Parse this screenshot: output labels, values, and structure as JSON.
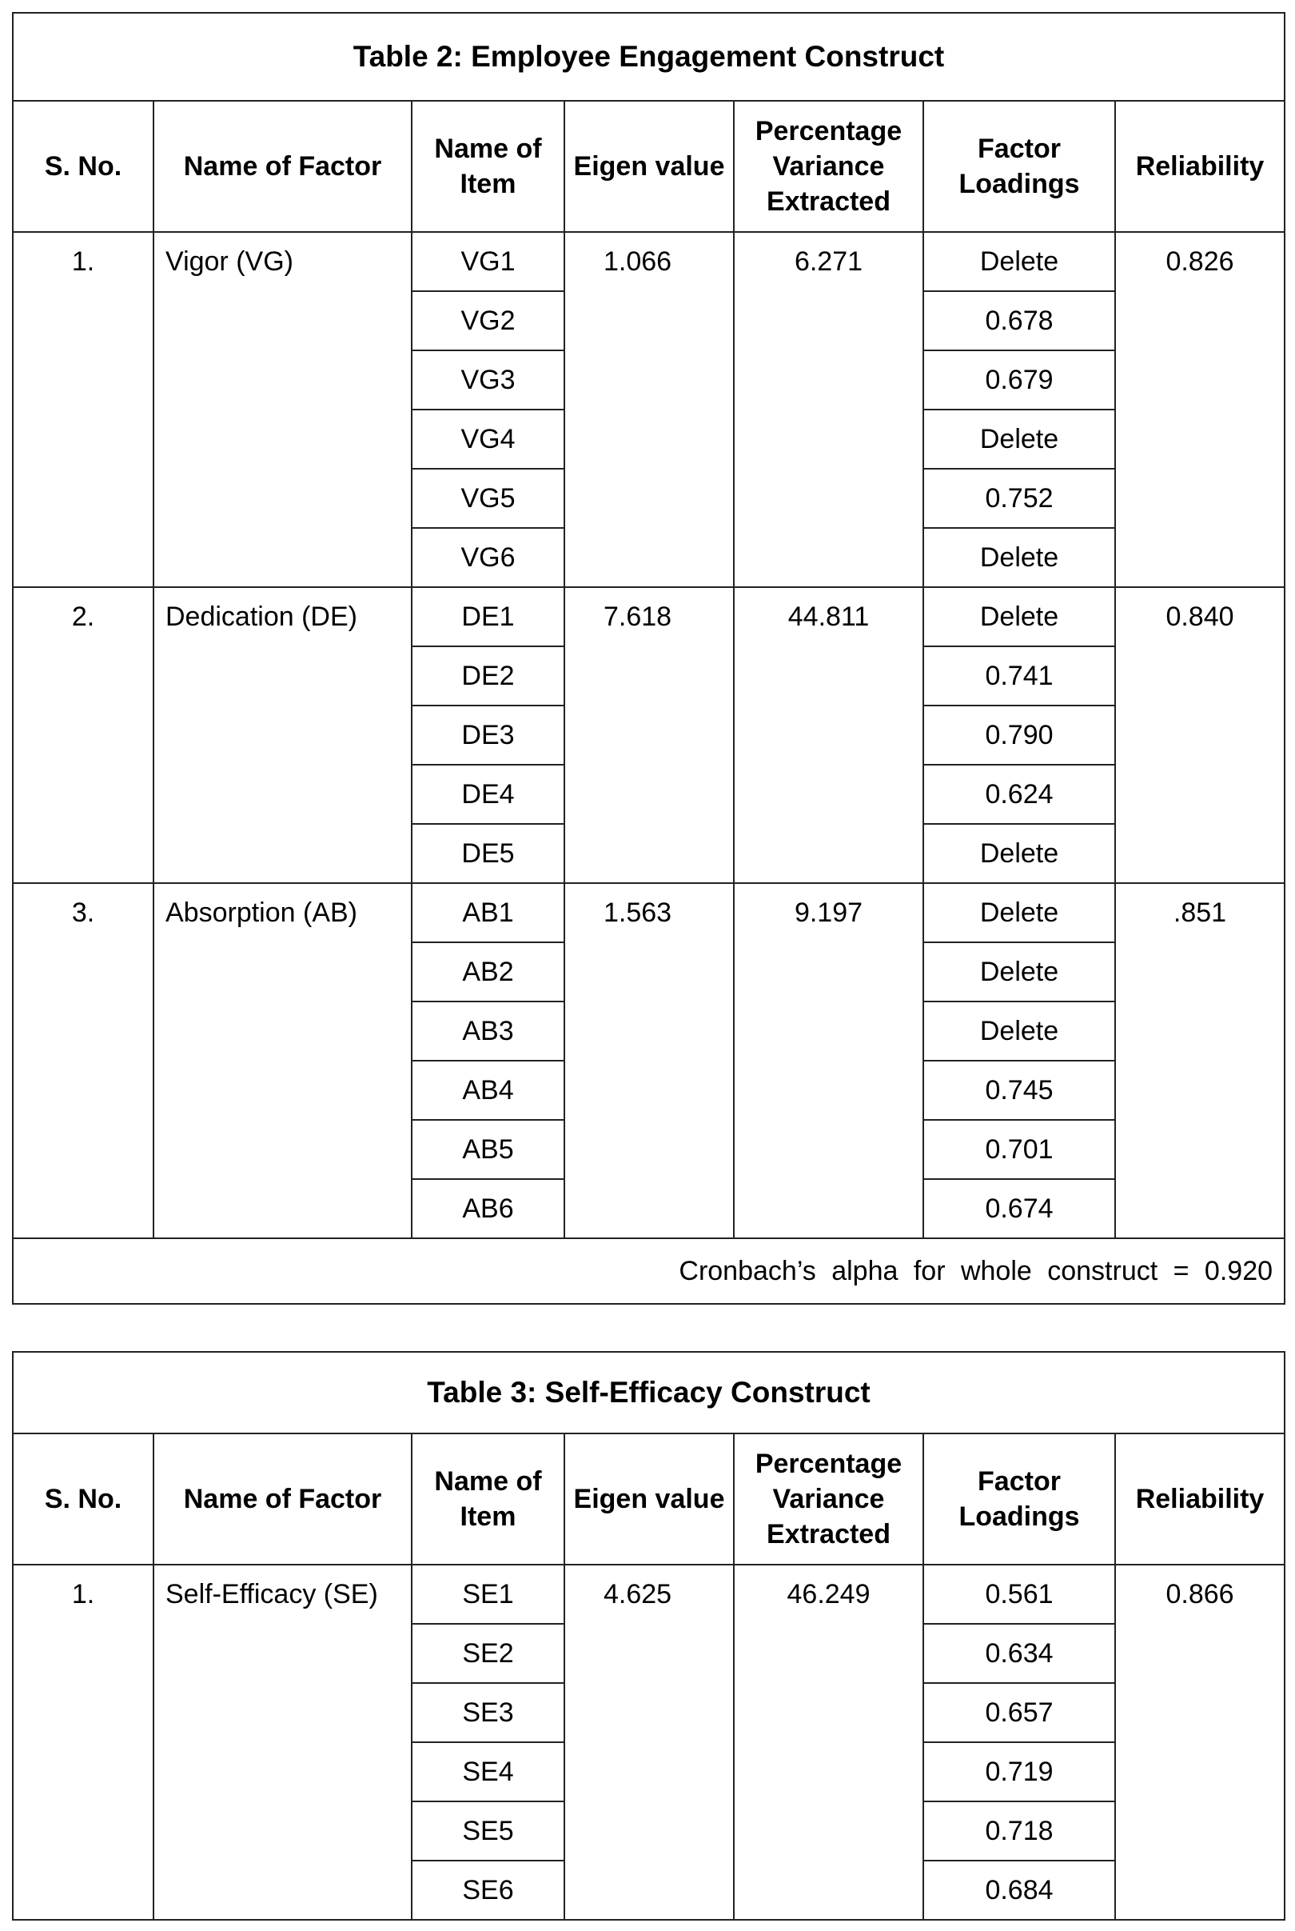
{
  "table2": {
    "title": "Table 2: Employee Engagement Construct",
    "headers": [
      "S. No.",
      "Name of Factor",
      "Name of Item",
      "Eigen value",
      "Percentage Variance Extracted",
      "Factor Loadings",
      "Reliability"
    ],
    "groups": [
      {
        "sno": "1.",
        "factor": "Vigor (VG)",
        "eigen": "1.066",
        "variance": "6.271",
        "reliability": "0.826",
        "items": [
          [
            "VG1",
            "Delete"
          ],
          [
            "VG2",
            "0.678"
          ],
          [
            "VG3",
            "0.679"
          ],
          [
            "VG4",
            "Delete"
          ],
          [
            "VG5",
            "0.752"
          ],
          [
            "VG6",
            "Delete"
          ]
        ]
      },
      {
        "sno": "2.",
        "factor": "Dedication  (DE)",
        "eigen": "7.618",
        "variance": "44.811",
        "reliability": "0.840",
        "items": [
          [
            "DE1",
            "Delete"
          ],
          [
            "DE2",
            "0.741"
          ],
          [
            "DE3",
            "0.790"
          ],
          [
            "DE4",
            "0.624"
          ],
          [
            "DE5",
            "Delete"
          ]
        ]
      },
      {
        "sno": "3.",
        "factor": "Absorption  (AB)",
        "eigen": "1.563",
        "variance": "9.197",
        "reliability": ".851",
        "items": [
          [
            "AB1",
            "Delete"
          ],
          [
            "AB2",
            "Delete"
          ],
          [
            "AB3",
            "Delete"
          ],
          [
            "AB4",
            "0.745"
          ],
          [
            "AB5",
            "0.701"
          ],
          [
            "AB6",
            "0.674"
          ]
        ]
      }
    ],
    "footer": "Cronbach’s alpha for whole construct = 0.920"
  },
  "table3": {
    "title": "Table 3: Self-Efficacy Construct",
    "headers": [
      "S. No.",
      "Name of Factor",
      "Name of Item",
      "Eigen value",
      "Percentage Variance Extracted",
      "Factor Loadings",
      "Reliability"
    ],
    "groups": [
      {
        "sno": "1.",
        "factor": "Self-Efficacy (SE)",
        "eigen": "4.625",
        "variance": "46.249",
        "reliability": "0.866",
        "items": [
          [
            "SE1",
            "0.561"
          ],
          [
            "SE2",
            "0.634"
          ],
          [
            "SE3",
            "0.657"
          ],
          [
            "SE4",
            "0.719"
          ],
          [
            "SE5",
            "0.718"
          ],
          [
            "SE6",
            "0.684"
          ]
        ]
      }
    ]
  }
}
